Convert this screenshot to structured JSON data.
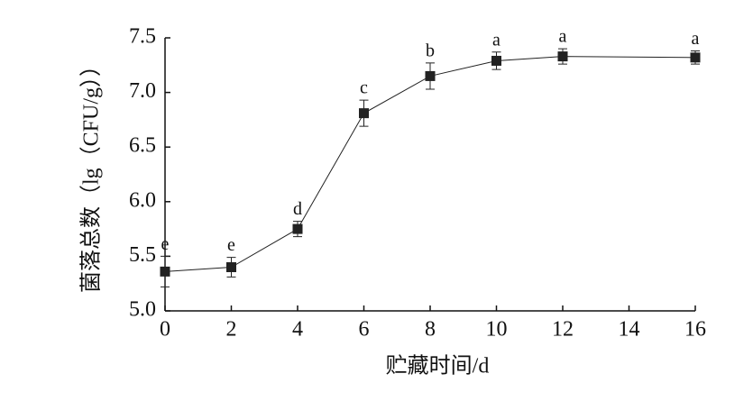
{
  "chart_data": {
    "type": "line",
    "xlabel": "贮藏时间/d",
    "ylabel": "菌落总数（lg（CFU/g））",
    "x": [
      0,
      2,
      4,
      6,
      8,
      10,
      12,
      16
    ],
    "series": [
      {
        "color": "#222222",
        "values": [
          5.36,
          5.4,
          5.75,
          6.81,
          7.15,
          7.29,
          7.33,
          7.32
        ],
        "errors": [
          0.14,
          0.09,
          0.07,
          0.12,
          0.12,
          0.08,
          0.07,
          0.06
        ],
        "labels": [
          "e",
          "e",
          "d",
          "c",
          "b",
          "a",
          "a",
          "a"
        ]
      }
    ],
    "xlim": [
      0,
      16
    ],
    "xticks": [
      0,
      2,
      4,
      6,
      8,
      10,
      12,
      14,
      16
    ],
    "ylim": [
      5.0,
      7.5
    ],
    "yticks": [
      {
        "value": 5,
        "label": "5.0"
      },
      {
        "value": 5.5,
        "label": "5.5"
      },
      {
        "value": 6,
        "label": "6.0"
      },
      {
        "value": 6.5,
        "label": "6.5"
      },
      {
        "value": 7,
        "label": "7.0"
      },
      {
        "value": 7.5,
        "label": "7.5"
      }
    ]
  }
}
